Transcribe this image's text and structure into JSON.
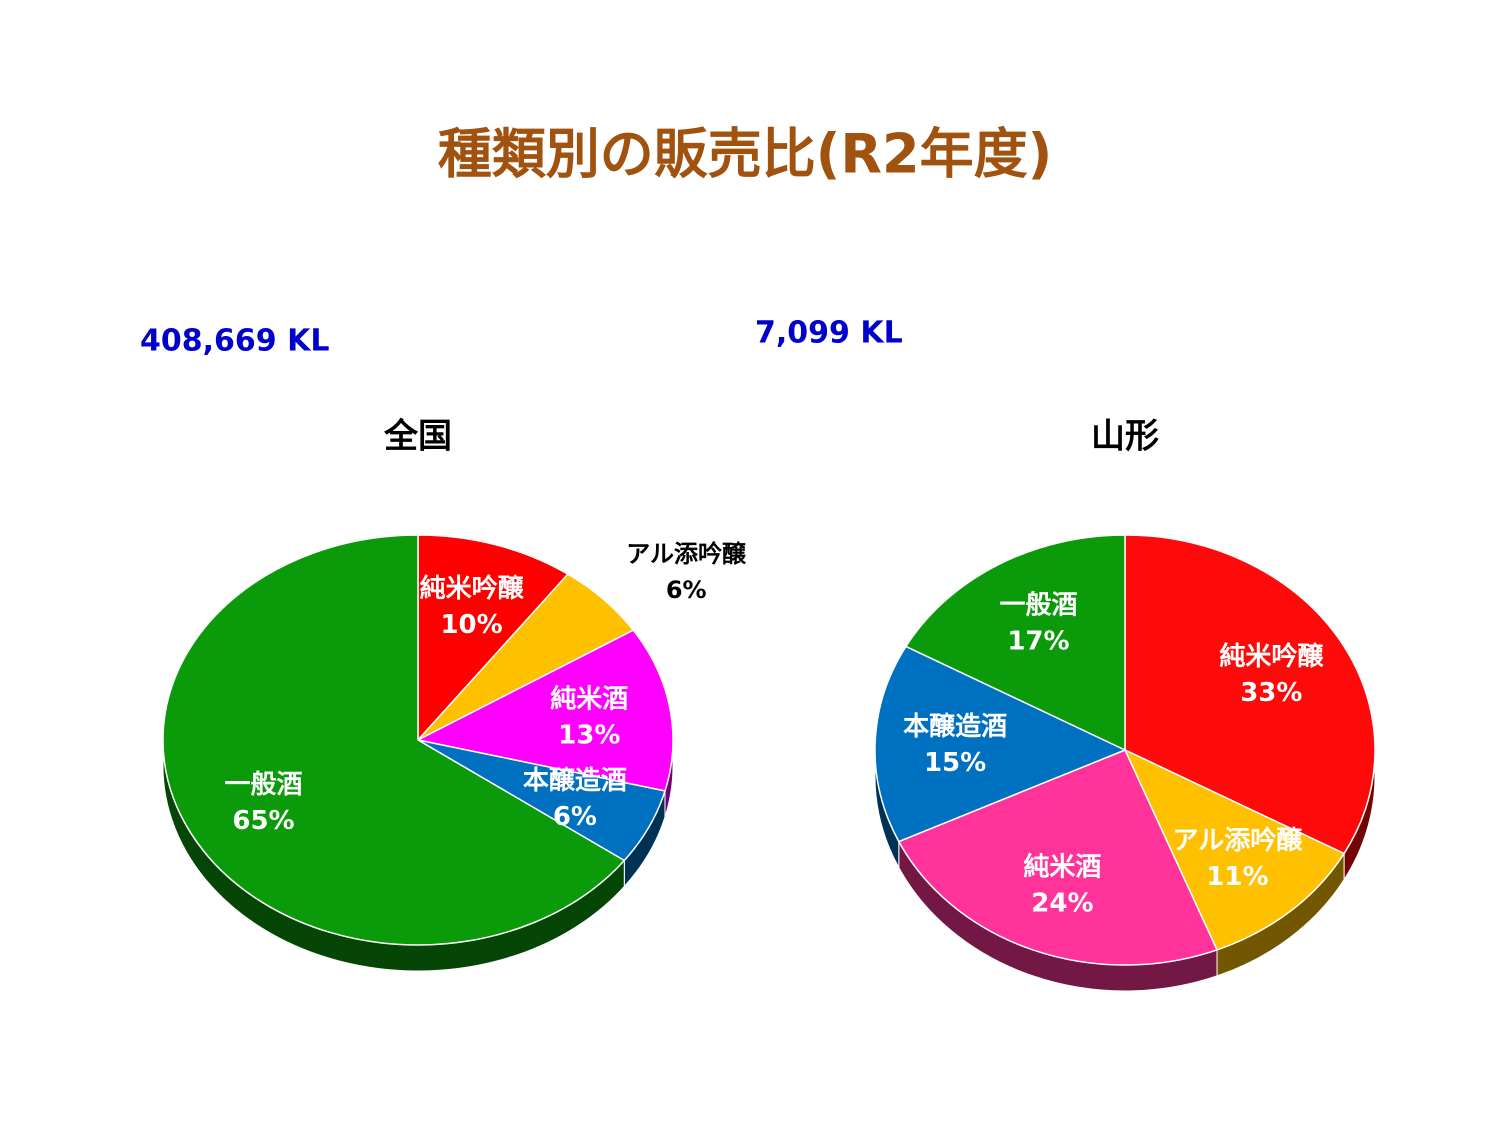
{
  "title": "種類別の販売比(R2年度)",
  "chart_data": [
    {
      "type": "pie",
      "title": "全国",
      "subtitle": "408,669 KL",
      "categories": [
        "純米吟醸",
        "アル添吟醸",
        "純米酒",
        "本醸造酒",
        "一般酒"
      ],
      "values": [
        10,
        6,
        13,
        6,
        65
      ],
      "value_labels": [
        "10%",
        "6%",
        "13%",
        "6%",
        "65%"
      ],
      "colors": [
        "#ff0000",
        "#ffc000",
        "#ff00ff",
        "#0070c0",
        "#0a9a0a"
      ]
    },
    {
      "type": "pie",
      "title": "山形",
      "subtitle": "7,099 KL",
      "categories": [
        "純米吟醸",
        "アル添吟醸",
        "純米酒",
        "本醸造酒",
        "一般酒"
      ],
      "values": [
        33,
        11,
        24,
        15,
        17
      ],
      "value_labels": [
        "33%",
        "11%",
        "24%",
        "15%",
        "17%"
      ],
      "colors": [
        "#ff0a0a",
        "#ffc000",
        "#ff3399",
        "#0070c0",
        "#0a9a0a"
      ]
    }
  ]
}
